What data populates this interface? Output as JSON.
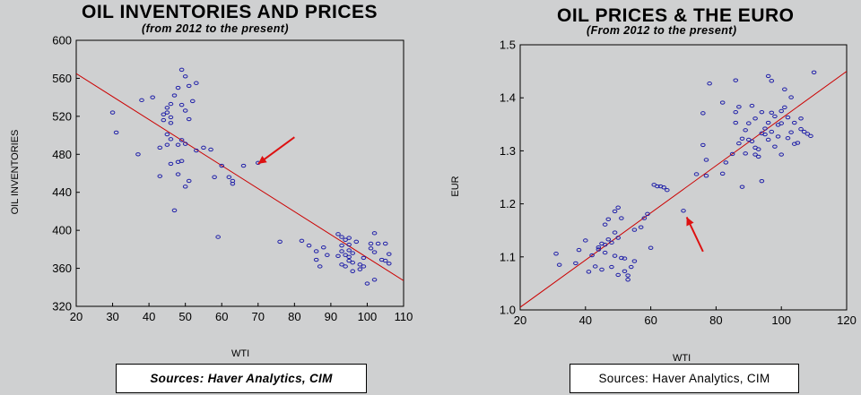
{
  "chart_data": [
    {
      "type": "scatter",
      "title": "OIL INVENTORIES AND PRICES",
      "subtitle": "(from 2012 to the present)",
      "xlabel": "WTI",
      "ylabel": "OIL INVENTORIES",
      "xlim": [
        20,
        110
      ],
      "ylim": [
        320,
        600
      ],
      "xticks": [
        20,
        30,
        40,
        50,
        60,
        70,
        80,
        90,
        100,
        110
      ],
      "yticks": [
        320,
        360,
        400,
        440,
        480,
        520,
        560,
        600
      ],
      "trendline": {
        "x": [
          20,
          110
        ],
        "y": [
          565,
          347
        ]
      },
      "annotation": {
        "type": "arrow",
        "from": [
          80,
          498
        ],
        "to": [
          70,
          470
        ]
      },
      "source": "Sources:  Haver Analytics, CIM",
      "points": [
        [
          30,
          524
        ],
        [
          31,
          503
        ],
        [
          37,
          480
        ],
        [
          38,
          537
        ],
        [
          41,
          540
        ],
        [
          43,
          487
        ],
        [
          43,
          457
        ],
        [
          44,
          522
        ],
        [
          44,
          516
        ],
        [
          45,
          529
        ],
        [
          45,
          524
        ],
        [
          45,
          501
        ],
        [
          45,
          490
        ],
        [
          46,
          533
        ],
        [
          46,
          519
        ],
        [
          46,
          513
        ],
        [
          46,
          496
        ],
        [
          46,
          470
        ],
        [
          47,
          542
        ],
        [
          47,
          421
        ],
        [
          48,
          550
        ],
        [
          48,
          490
        ],
        [
          48,
          472
        ],
        [
          48,
          459
        ],
        [
          49,
          532
        ],
        [
          49,
          569
        ],
        [
          49,
          495
        ],
        [
          49,
          473
        ],
        [
          50,
          562
        ],
        [
          50,
          526
        ],
        [
          50,
          491
        ],
        [
          50,
          446
        ],
        [
          51,
          552
        ],
        [
          51,
          517
        ],
        [
          51,
          452
        ],
        [
          52,
          536
        ],
        [
          53,
          555
        ],
        [
          53,
          484
        ],
        [
          55,
          487
        ],
        [
          57,
          485
        ],
        [
          58,
          456
        ],
        [
          59,
          393
        ],
        [
          60,
          468
        ],
        [
          62,
          456
        ],
        [
          63,
          452
        ],
        [
          63,
          449
        ],
        [
          66,
          468
        ],
        [
          70,
          471
        ],
        [
          76,
          388
        ],
        [
          82,
          389
        ],
        [
          84,
          384
        ],
        [
          86,
          378
        ],
        [
          86,
          369
        ],
        [
          87,
          362
        ],
        [
          88,
          382
        ],
        [
          89,
          374
        ],
        [
          92,
          396
        ],
        [
          92,
          373
        ],
        [
          93,
          393
        ],
        [
          93,
          384
        ],
        [
          93,
          378
        ],
        [
          93,
          364
        ],
        [
          94,
          390
        ],
        [
          94,
          374
        ],
        [
          94,
          362
        ],
        [
          95,
          392
        ],
        [
          95,
          385
        ],
        [
          95,
          379
        ],
        [
          95,
          372
        ],
        [
          95,
          368
        ],
        [
          96,
          376
        ],
        [
          96,
          366
        ],
        [
          96,
          357
        ],
        [
          97,
          388
        ],
        [
          98,
          364
        ],
        [
          98,
          359
        ],
        [
          99,
          371
        ],
        [
          99,
          362
        ],
        [
          100,
          344
        ],
        [
          101,
          386
        ],
        [
          101,
          381
        ],
        [
          102,
          397
        ],
        [
          102,
          348
        ],
        [
          102,
          377
        ],
        [
          103,
          386
        ],
        [
          104,
          369
        ],
        [
          105,
          386
        ],
        [
          105,
          368
        ],
        [
          106,
          375
        ],
        [
          106,
          365
        ]
      ]
    },
    {
      "type": "scatter",
      "title": "OIL PRICES & THE EURO",
      "subtitle": "(From 2012 to the present)",
      "xlabel": "WTI",
      "ylabel": "EUR",
      "xlim": [
        20,
        120
      ],
      "ylim": [
        1.0,
        1.5
      ],
      "xticks": [
        20,
        40,
        60,
        80,
        100,
        120
      ],
      "yticks": [
        1.0,
        1.1,
        1.2,
        1.3,
        1.4,
        1.5
      ],
      "trendline": {
        "x": [
          20,
          120
        ],
        "y": [
          1.005,
          1.45
        ]
      },
      "annotation": {
        "type": "arrow",
        "from": [
          76,
          1.11
        ],
        "to": [
          71,
          1.175
        ]
      },
      "source": "Sources:  Haver Analytics, CIM",
      "points": [
        [
          31,
          1.106
        ],
        [
          32,
          1.085
        ],
        [
          37,
          1.088
        ],
        [
          38,
          1.113
        ],
        [
          40,
          1.131
        ],
        [
          41,
          1.072
        ],
        [
          42,
          1.103
        ],
        [
          43,
          1.082
        ],
        [
          44,
          1.118
        ],
        [
          44,
          1.114
        ],
        [
          45,
          1.125
        ],
        [
          45,
          1.076
        ],
        [
          46,
          1.108
        ],
        [
          46,
          1.123
        ],
        [
          46,
          1.161
        ],
        [
          47,
          1.171
        ],
        [
          47,
          1.133
        ],
        [
          48,
          1.081
        ],
        [
          48,
          1.127
        ],
        [
          49,
          1.102
        ],
        [
          49,
          1.146
        ],
        [
          49,
          1.186
        ],
        [
          50,
          1.193
        ],
        [
          50,
          1.066
        ],
        [
          50,
          1.136
        ],
        [
          51,
          1.173
        ],
        [
          51,
          1.098
        ],
        [
          52,
          1.073
        ],
        [
          52,
          1.097
        ],
        [
          53,
          1.057
        ],
        [
          53,
          1.065
        ],
        [
          54,
          1.081
        ],
        [
          55,
          1.151
        ],
        [
          55,
          1.092
        ],
        [
          57,
          1.156
        ],
        [
          58,
          1.173
        ],
        [
          59,
          1.181
        ],
        [
          60,
          1.117
        ],
        [
          61,
          1.236
        ],
        [
          62,
          1.233
        ],
        [
          63,
          1.233
        ],
        [
          64,
          1.231
        ],
        [
          65,
          1.226
        ],
        [
          70,
          1.187
        ],
        [
          74,
          1.256
        ],
        [
          76,
          1.311
        ],
        [
          77,
          1.253
        ],
        [
          76,
          1.371
        ],
        [
          77,
          1.283
        ],
        [
          78,
          1.427
        ],
        [
          82,
          1.257
        ],
        [
          82,
          1.391
        ],
        [
          83,
          1.278
        ],
        [
          85,
          1.294
        ],
        [
          86,
          1.373
        ],
        [
          86,
          1.433
        ],
        [
          86,
          1.353
        ],
        [
          87,
          1.383
        ],
        [
          87,
          1.314
        ],
        [
          88,
          1.232
        ],
        [
          88,
          1.323
        ],
        [
          89,
          1.339
        ],
        [
          89,
          1.295
        ],
        [
          90,
          1.352
        ],
        [
          90,
          1.321
        ],
        [
          91,
          1.385
        ],
        [
          91,
          1.318
        ],
        [
          92,
          1.306
        ],
        [
          92,
          1.361
        ],
        [
          92,
          1.293
        ],
        [
          93,
          1.303
        ],
        [
          93,
          1.289
        ],
        [
          94,
          1.243
        ],
        [
          94,
          1.333
        ],
        [
          94,
          1.373
        ],
        [
          95,
          1.331
        ],
        [
          95,
          1.342
        ],
        [
          96,
          1.353
        ],
        [
          96,
          1.441
        ],
        [
          96,
          1.321
        ],
        [
          97,
          1.432
        ],
        [
          97,
          1.372
        ],
        [
          97,
          1.336
        ],
        [
          98,
          1.365
        ],
        [
          98,
          1.308
        ],
        [
          99,
          1.349
        ],
        [
          99,
          1.327
        ],
        [
          100,
          1.375
        ],
        [
          100,
          1.293
        ],
        [
          100,
          1.352
        ],
        [
          101,
          1.382
        ],
        [
          101,
          1.416
        ],
        [
          102,
          1.363
        ],
        [
          102,
          1.324
        ],
        [
          103,
          1.401
        ],
        [
          103,
          1.335
        ],
        [
          104,
          1.353
        ],
        [
          104,
          1.313
        ],
        [
          105,
          1.315
        ],
        [
          106,
          1.341
        ],
        [
          106,
          1.361
        ],
        [
          107,
          1.336
        ],
        [
          108,
          1.332
        ],
        [
          109,
          1.328
        ],
        [
          110,
          1.448
        ]
      ]
    }
  ],
  "colors": {
    "background": "#cfd0d1",
    "points": "#1f1fa8",
    "trendline": "#cc0000",
    "arrow": "#dd1111",
    "text": "#000000"
  }
}
